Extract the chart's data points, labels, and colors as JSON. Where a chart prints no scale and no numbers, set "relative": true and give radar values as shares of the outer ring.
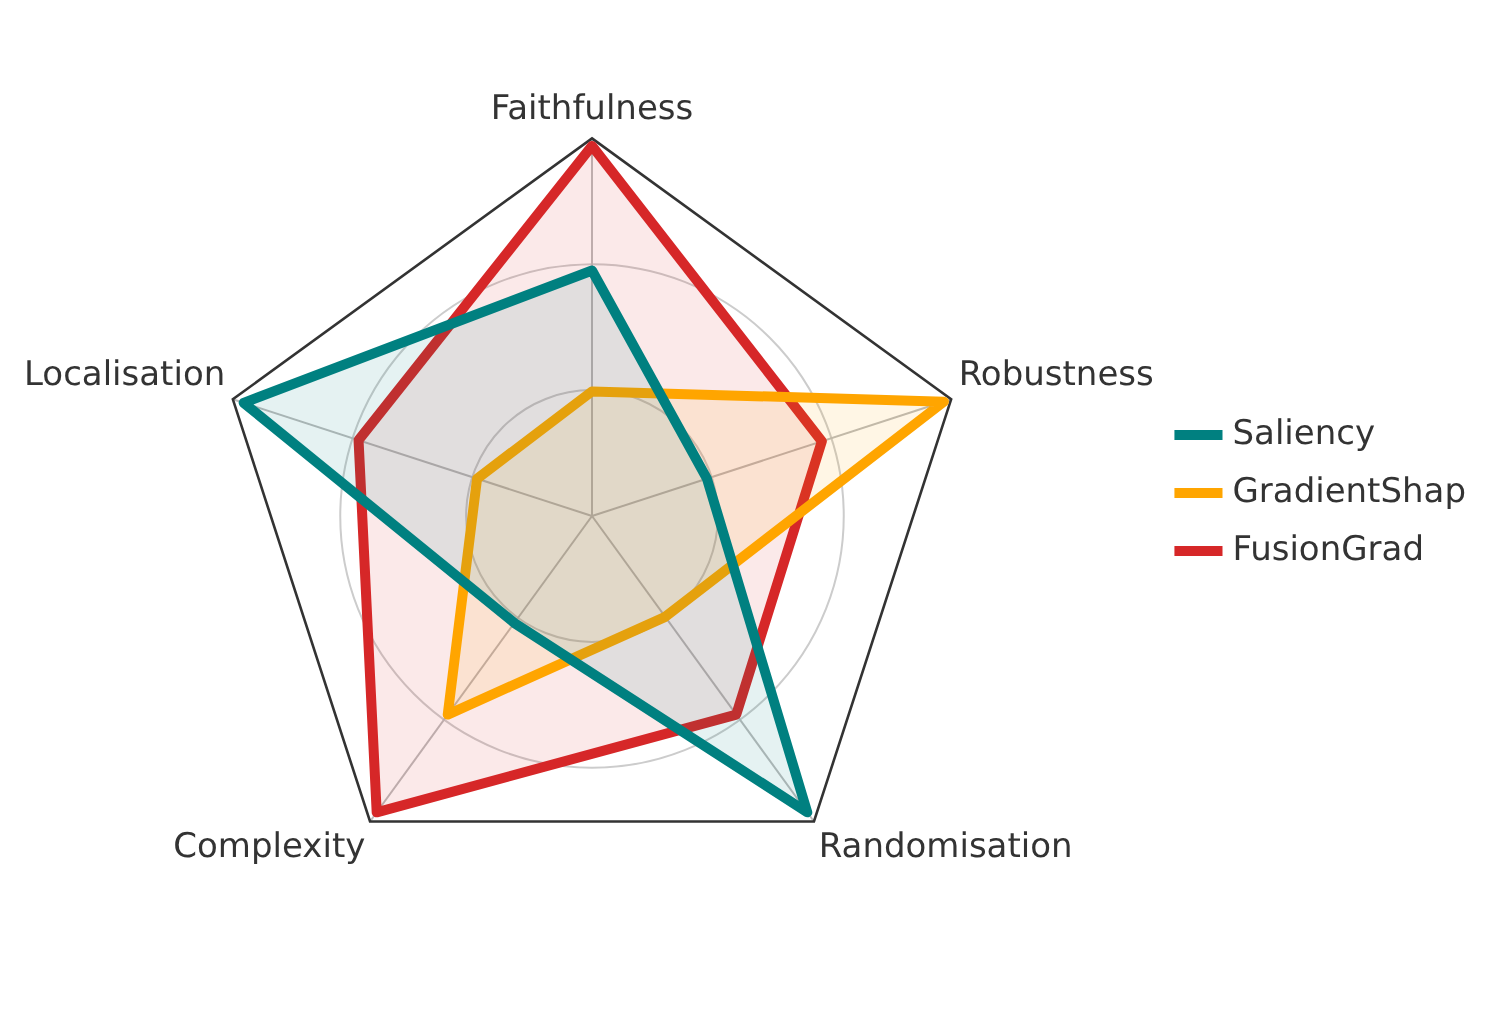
{
  "chart_data": {
    "type": "radar",
    "relative": true,
    "categories": [
      "Faithfulness",
      "Robustness",
      "Randomisation",
      "Complexity",
      "Localisation"
    ],
    "series": [
      {
        "name": "Saliency",
        "color": "#008080",
        "values": [
          0.65,
          0.32,
          0.97,
          0.35,
          0.97
        ]
      },
      {
        "name": "GradientShap",
        "color": "#ffa500",
        "values": [
          0.33,
          0.98,
          0.33,
          0.65,
          0.32
        ]
      },
      {
        "name": "FusionGrad",
        "color": "#d62728",
        "values": [
          0.98,
          0.64,
          0.65,
          0.97,
          0.65
        ]
      }
    ],
    "grid": true,
    "legend": "right",
    "marker": "none",
    "line_style": "solid"
  }
}
